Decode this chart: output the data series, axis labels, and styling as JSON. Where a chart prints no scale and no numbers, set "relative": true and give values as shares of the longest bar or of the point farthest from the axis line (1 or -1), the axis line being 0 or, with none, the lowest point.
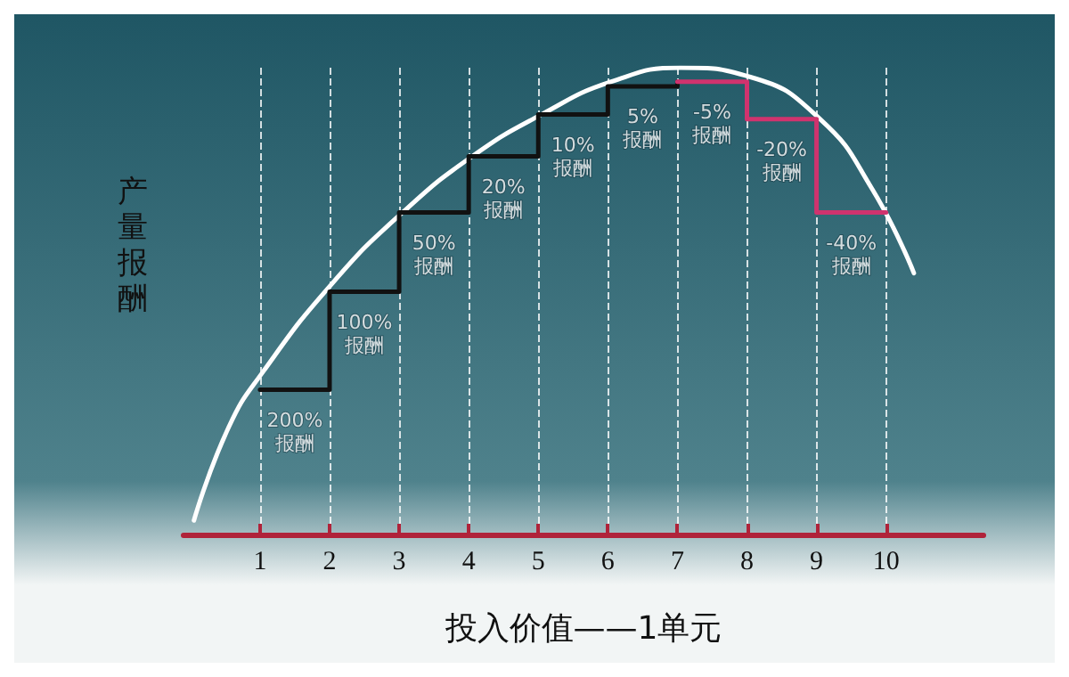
{
  "chart_data": {
    "type": "line",
    "relative": true,
    "xlabel": "投入价值——1单元",
    "ylabel": "产量报酬",
    "xlim": [
      -0.1,
      11.4
    ],
    "xticks": [
      1,
      2,
      3,
      4,
      5,
      6,
      7,
      8,
      9,
      10
    ],
    "grid": "x",
    "marker": "none",
    "series": [
      {
        "color": "#ffffff",
        "x": [
          0.05,
          0.55,
          1.05,
          2.05,
          3.05,
          4.05,
          5.05,
          6.05,
          7.05,
          8.05,
          9.05,
          9.8,
          10.4
        ],
        "values": [
          0.03,
          0.23,
          0.35,
          0.54,
          0.69,
          0.81,
          0.9,
          0.97,
          1.0,
          0.98,
          0.89,
          0.74,
          0.56
        ]
      },
      {
        "type": "step",
        "color": "#111111",
        "x": [
          1,
          2,
          3,
          4,
          5,
          6,
          7
        ],
        "values": [
          0.31,
          0.52,
          0.69,
          0.81,
          0.9,
          0.96,
          0.97
        ]
      },
      {
        "type": "step",
        "color": "#d0336e",
        "x": [
          7,
          8,
          9,
          10
        ],
        "values": [
          0.97,
          0.89,
          0.69,
          0.69
        ]
      }
    ],
    "annotations": [
      "200%\n报酬",
      "100%\n报酬",
      "50%\n报酬",
      "20%\n报酬",
      "10%\n报酬",
      "5%\n报酬",
      "-5%\n报酬",
      "-20%\n报酬",
      "-40%\n报酬"
    ]
  }
}
